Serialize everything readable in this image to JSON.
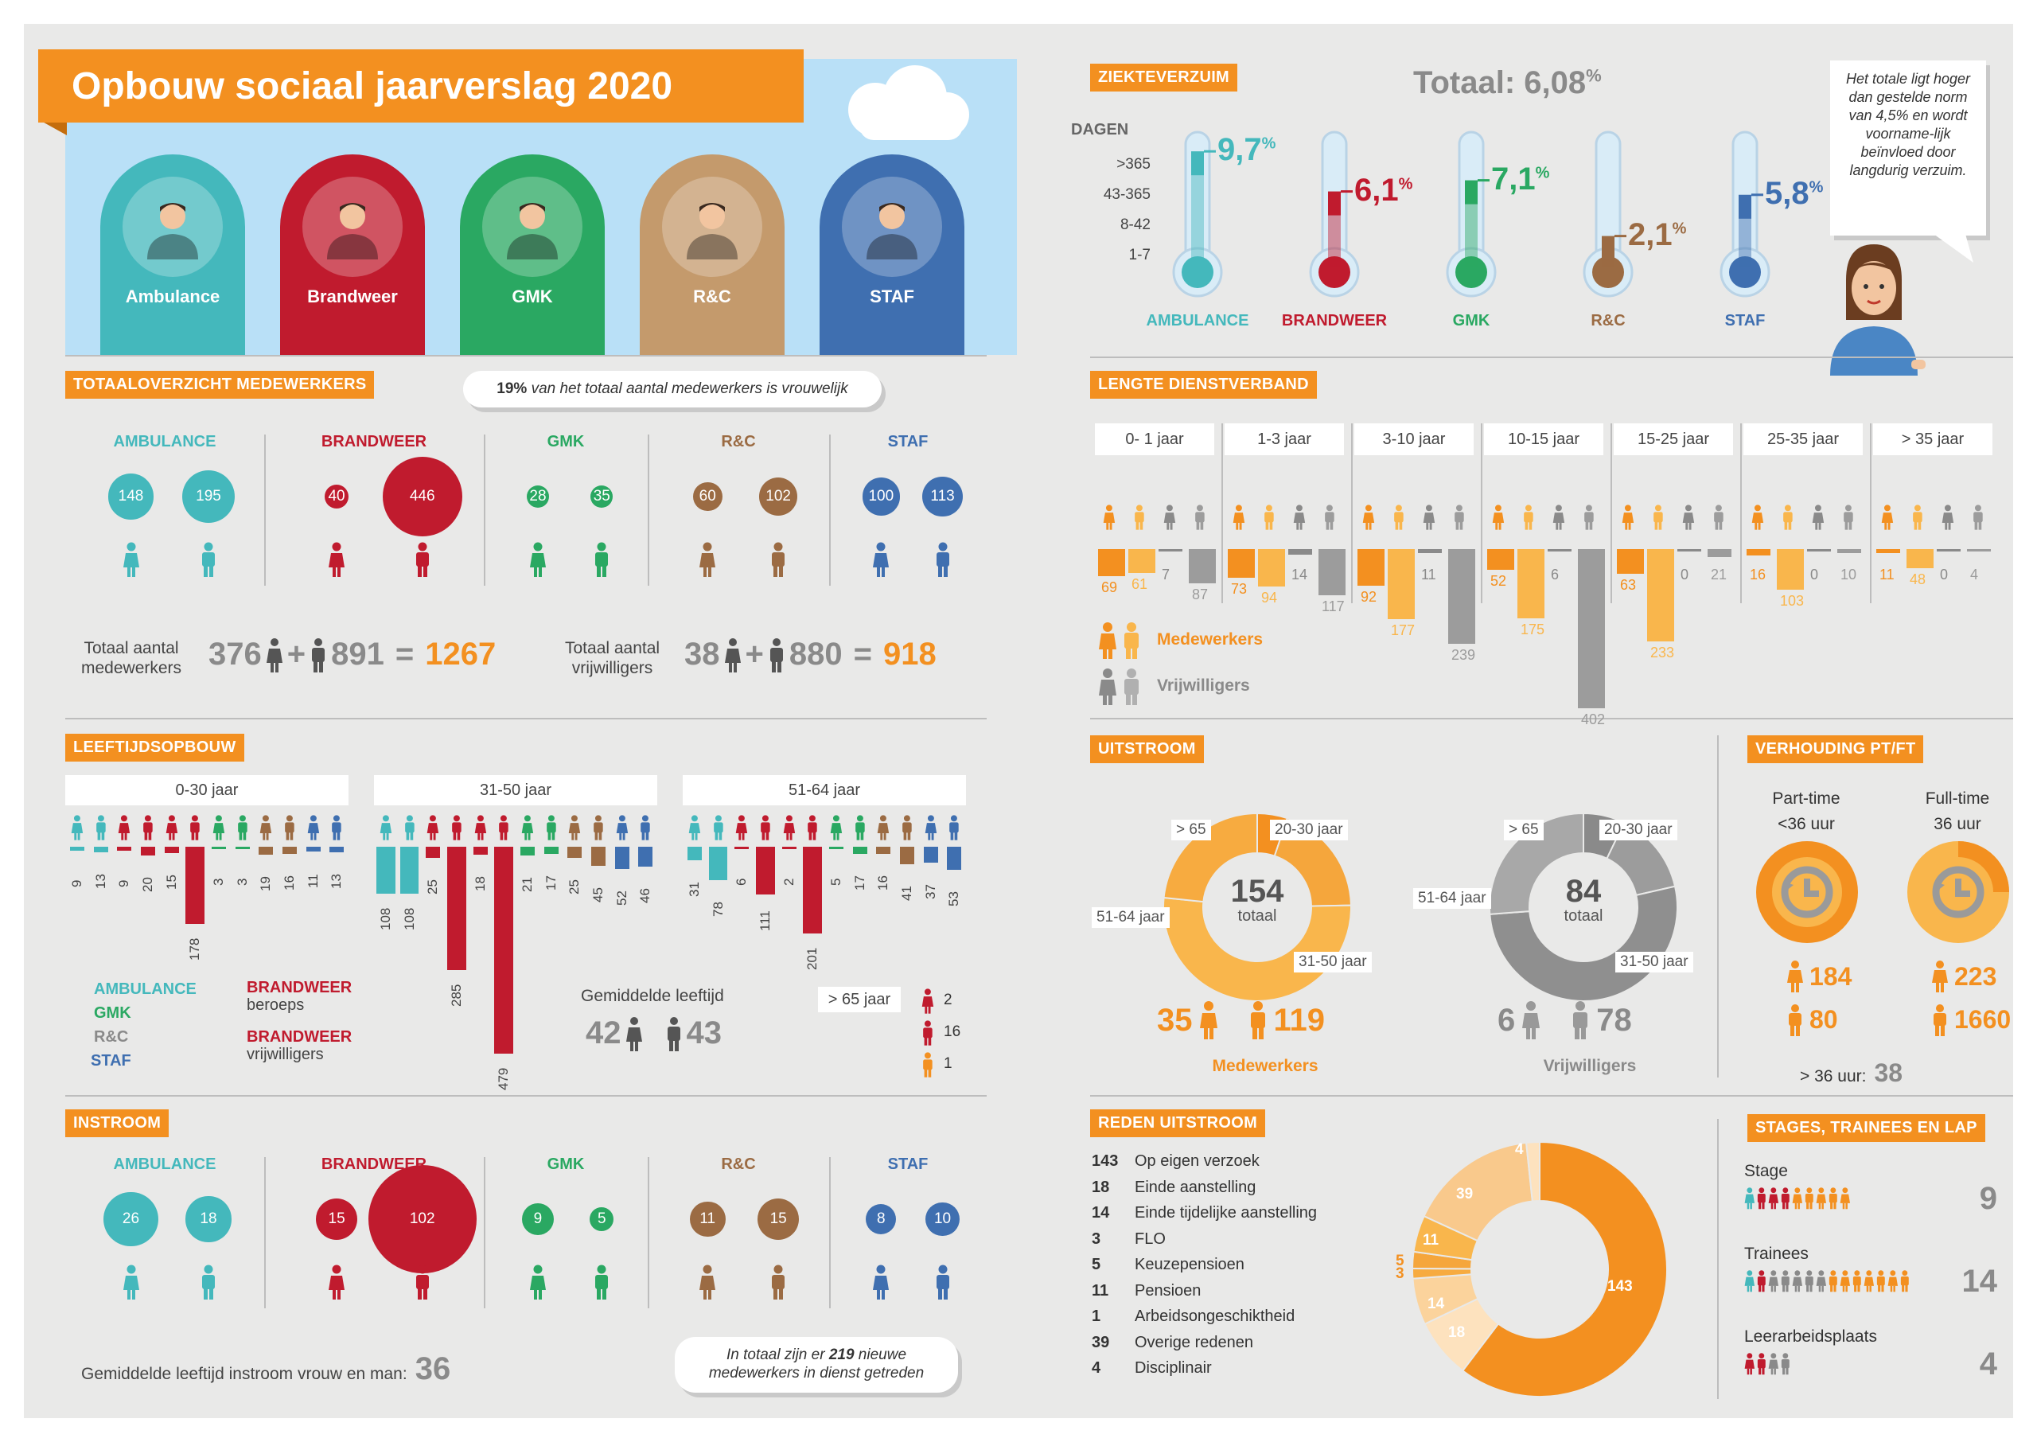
{
  "title": "Opbouw sociaal jaarverslag 2020",
  "colors": {
    "orange": "#f39020",
    "light_orange": "#f9b64c",
    "ambulance": "#44b8bc",
    "brandweer": "#c01b2e",
    "gmk": "#2aa862",
    "rc": "#9b6b43",
    "staf": "#3f6fb0",
    "gray": "#8a8a8a",
    "background": "#e9e9e8"
  },
  "header": {
    "arches": [
      {
        "label": "Ambulance",
        "color": "#44b8bc",
        "icon": "ambulance-worker-icon"
      },
      {
        "label": "Brandweer",
        "color": "#c01b2e",
        "icon": "firefighter-icon"
      },
      {
        "label": "GMK",
        "color": "#2aa862",
        "icon": "dispatcher-headset-icon"
      },
      {
        "label": "R&C",
        "color": "#c49a6c",
        "icon": "office-worker-icon"
      },
      {
        "label": "STAF",
        "color": "#3f6fb0",
        "icon": "staff-worker-icon"
      }
    ]
  },
  "totaaloverzicht": {
    "label": "TOTAALOVERZICHT MEDEWERKERS",
    "note_bold": "19%",
    "note_rest": " van het totaal aantal medewerkers is vrouwelijk",
    "groups": [
      {
        "name": "AMBULANCE",
        "color": "#44b8bc",
        "female": "148",
        "male": "195"
      },
      {
        "name": "BRANDWEER",
        "color": "#c01b2e",
        "female": "40",
        "male": "446"
      },
      {
        "name": "GMK",
        "color": "#2aa862",
        "female": "28",
        "male": "35"
      },
      {
        "name": "R&C",
        "color": "#9b6b43",
        "female": "60",
        "male": "102"
      },
      {
        "name": "STAF",
        "color": "#3f6fb0",
        "female": "100",
        "male": "113"
      }
    ],
    "medewerkers_label_1": "Totaal aantal",
    "medewerkers_label_2": "medewerkers",
    "medewerkers_f": "376",
    "medewerkers_m": "891",
    "medewerkers_total": "1267",
    "vrijwilligers_label_1": "Totaal aantal",
    "vrijwilligers_label_2": "vrijwilligers",
    "vrijwilligers_f": "38",
    "vrijwilligers_m": "880",
    "vrijwilligers_total": "918",
    "plus": "+",
    "equals": "="
  },
  "leeftijd": {
    "label": "LEEFTIJDSOPBOUW",
    "groups": [
      {
        "label": "0-30 jaar",
        "values": [
          "9",
          "13",
          "9",
          "20",
          "15",
          "178",
          "3",
          "3",
          "19",
          "16",
          "11",
          "13"
        ]
      },
      {
        "label": "31-50 jaar",
        "values": [
          "108",
          "108",
          "25",
          "285",
          "18",
          "479",
          "21",
          "17",
          "25",
          "45",
          "52",
          "46"
        ]
      },
      {
        "label": "51-64 jaar",
        "values": [
          "31",
          "78",
          "6",
          "111",
          "2",
          "201",
          "5",
          "17",
          "16",
          "41",
          "37",
          "53"
        ]
      }
    ],
    "legend": {
      "ambulance": "AMBULANCE",
      "gmk": "GMK",
      "rc": "R&C",
      "staf": "STAF",
      "brandweer1": "BRANDWEER",
      "beroeps": "beroeps",
      "brandweer2": "BRANDWEER",
      "vrijwilligers": "vrijwilligers"
    },
    "avg_label": "Gemiddelde leeftijd",
    "avg_f": "42",
    "avg_m": "43",
    "over65_label": "> 65 jaar",
    "over65": [
      "2",
      "16",
      "1"
    ]
  },
  "instroom": {
    "label": "INSTROOM",
    "groups": [
      {
        "name": "AMBULANCE",
        "color": "#44b8bc",
        "female": "26",
        "male": "18"
      },
      {
        "name": "BRANDWEER",
        "color": "#c01b2e",
        "female": "15",
        "male": "102"
      },
      {
        "name": "GMK",
        "color": "#2aa862",
        "female": "9",
        "male": "5"
      },
      {
        "name": "R&C",
        "color": "#9b6b43",
        "female": "11",
        "male": "15"
      },
      {
        "name": "STAF",
        "color": "#3f6fb0",
        "female": "8",
        "male": "10"
      }
    ],
    "avg_label": "Gemiddelde leeftijd instroom vrouw en man:",
    "avg_value": "36",
    "note_1": "In totaal zijn er ",
    "note_bold": "219",
    "note_2": " nieuwe",
    "note_3": "medewerkers in dienst getreden"
  },
  "ziekte": {
    "label": "ZIEKTEVERZUIM",
    "totaal_label": "Totaal:",
    "totaal_value": "6,08",
    "totaal_unit": "%",
    "dagen_label": "DAGEN",
    "scale": [
      ">365",
      "43-365",
      "8-42",
      "1-7"
    ],
    "items": [
      {
        "name": "AMBULANCE",
        "value": "9,7",
        "level": 0.97,
        "color": "#44b8bc"
      },
      {
        "name": "BRANDWEER",
        "value": "6,1",
        "level": 0.61,
        "color": "#c01b2e"
      },
      {
        "name": "GMK",
        "value": "7,1",
        "level": 0.71,
        "color": "#2aa862"
      },
      {
        "name": "R&C",
        "value": "2,1",
        "level": 0.21,
        "color": "#9b6b43"
      },
      {
        "name": "STAF",
        "value": "5,8",
        "level": 0.58,
        "color": "#3f6fb0"
      }
    ],
    "pct": "%",
    "speech": "Het totale ligt hoger dan gestelde norm van 4,5% en wordt voorname-lijk beïnvloed door langdurig verzuim."
  },
  "dienstverband": {
    "label": "LENGTE DIENSTVERBAND",
    "groups": [
      {
        "label": "0- 1 jaar",
        "values": [
          "69",
          "61",
          "7",
          "87"
        ]
      },
      {
        "label": "1-3 jaar",
        "values": [
          "73",
          "94",
          "14",
          "117"
        ]
      },
      {
        "label": "3-10 jaar",
        "values": [
          "92",
          "177",
          "11",
          "239"
        ]
      },
      {
        "label": "10-15 jaar",
        "values": [
          "52",
          "175",
          "6",
          "402"
        ]
      },
      {
        "label": "15-25 jaar",
        "values": [
          "63",
          "233",
          "0",
          "21"
        ]
      },
      {
        "label": "25-35 jaar",
        "values": [
          "16",
          "103",
          "0",
          "10"
        ]
      },
      {
        "label": "> 35 jaar",
        "values": [
          "11",
          "48",
          "0",
          "4"
        ]
      }
    ],
    "legend_medewerkers": "Medewerkers",
    "legend_vrijwilligers": "Vrijwilligers"
  },
  "uitstroom": {
    "label": "UITSTROOM",
    "medewerkers": {
      "total": "154",
      "sub": "totaal",
      "f": "35",
      "m": "119",
      "caption": "Medewerkers"
    },
    "vrijwilligers": {
      "total": "84",
      "sub": "totaal",
      "f": "6",
      "m": "78",
      "caption": "Vrijwilligers"
    },
    "tags": [
      ">  65",
      "20-30 jaar",
      "51-64 jaar",
      "31-50 jaar"
    ]
  },
  "ptft": {
    "label": "VERHOUDING PT/FT",
    "pt_label_1": "Part-time",
    "pt_label_2": "<36 uur",
    "ft_label_1": "Full-time",
    "ft_label_2": "36 uur",
    "pt_f": "184",
    "pt_m": "80",
    "ft_f": "223",
    "ft_m": "1660",
    "over36_label": "> 36 uur:",
    "over36_value": "38"
  },
  "reden": {
    "label": "REDEN UITSTROOM",
    "items": [
      {
        "n": "143",
        "label": "Op eigen verzoek"
      },
      {
        "n": "18",
        "label": "Einde aanstelling"
      },
      {
        "n": "14",
        "label": "Einde tijdelijke aanstelling"
      },
      {
        "n": "3",
        "label": "FLO"
      },
      {
        "n": "5",
        "label": "Keuzepensioen"
      },
      {
        "n": "11",
        "label": "Pensioen"
      },
      {
        "n": "1",
        "label": "Arbeidsongeschiktheid"
      },
      {
        "n": "39",
        "label": "Overige redenen"
      },
      {
        "n": "4",
        "label": "Disciplinair"
      }
    ]
  },
  "stages": {
    "label": "STAGES, TRAINEES EN LAP",
    "items": [
      {
        "label": "Stage",
        "value": "9"
      },
      {
        "label": "Trainees",
        "value": "14"
      },
      {
        "label": "Leerarbeidsplaats",
        "value": "4"
      }
    ]
  }
}
